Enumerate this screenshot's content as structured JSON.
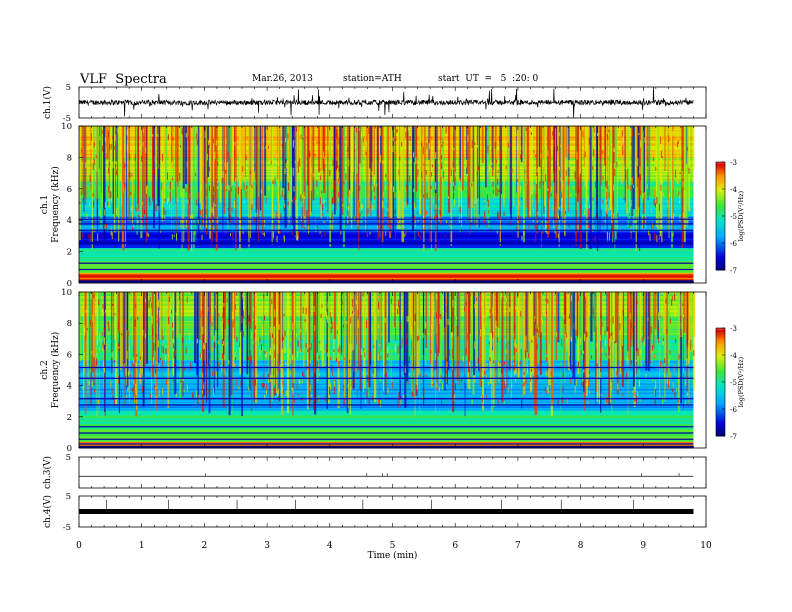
{
  "header": {
    "title": "VLF  Spectra",
    "date": "Mar.26, 2013",
    "station": "station=ATH",
    "start": "start  UT  =   5  :20: 0"
  },
  "colors": {
    "background": "#ffffff",
    "axis": "#000000",
    "spectrogram_min": "#000080",
    "spectrogram_max": "#cc0000"
  },
  "chart_data": [
    {
      "id": "ch1-waveform",
      "type": "line",
      "ylabel": "ch.1(V)",
      "ylim": [
        -5,
        5
      ],
      "yticks": [
        "5",
        "-5"
      ],
      "description_level": 0.0,
      "xlim": [
        0,
        10
      ]
    },
    {
      "id": "ch1-spectrogram",
      "type": "heatmap",
      "channel": "ch.1",
      "ylabel": "Frequency  (kHz)",
      "ylim": [
        0,
        10
      ],
      "yticks": [
        "0",
        "2",
        "4",
        "6",
        "8",
        "10"
      ],
      "xlim": [
        0,
        9.8
      ],
      "colorbar": {
        "label": "log(PSD(V²/Hz)",
        "range": [
          -7,
          -3
        ],
        "ticks": [
          "-3",
          "-4",
          "-5",
          "-6",
          "-7"
        ]
      }
    },
    {
      "id": "ch2-spectrogram",
      "type": "heatmap",
      "channel": "ch.2",
      "ylabel": "Frequency  (kHz)",
      "ylim": [
        0,
        10
      ],
      "yticks": [
        "0",
        "2",
        "4",
        "6",
        "8",
        "10"
      ],
      "xlim": [
        0,
        9.8
      ],
      "colorbar": {
        "label": "log(PSD(V²/Hz)",
        "range": [
          -7,
          -3
        ],
        "ticks": [
          "-3",
          "-4",
          "-5",
          "-6",
          "-7"
        ]
      }
    },
    {
      "id": "ch3-waveform",
      "type": "line",
      "ylabel": "ch.3(V)",
      "ylim": [
        -5,
        5
      ],
      "yticks": [
        "5"
      ],
      "xlim": [
        0,
        10
      ]
    },
    {
      "id": "ch4-waveform",
      "type": "line",
      "ylabel": "ch.4(V)",
      "ylim": [
        -5,
        5
      ],
      "yticks": [
        "5",
        "-5"
      ],
      "xlim": [
        0,
        10
      ]
    }
  ],
  "xaxis": {
    "label": "Time  (min)",
    "ticks": [
      "0",
      "1",
      "2",
      "3",
      "4",
      "5",
      "6",
      "7",
      "8",
      "9",
      "10"
    ]
  }
}
